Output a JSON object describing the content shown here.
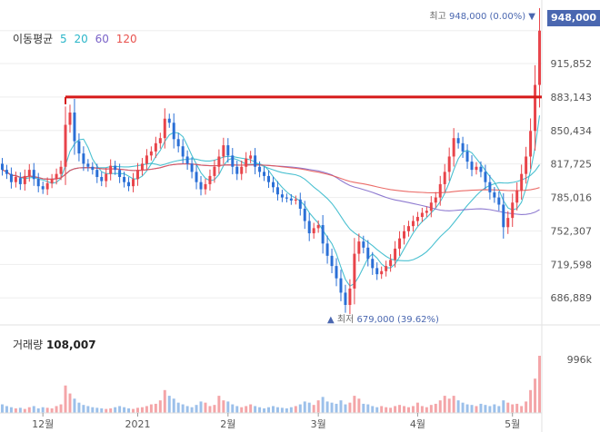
{
  "legend": {
    "title": "이동평균",
    "ma": [
      {
        "label": "5",
        "color": "#2bb6c9"
      },
      {
        "label": "20",
        "color": "#2bb6c9"
      },
      {
        "label": "60",
        "color": "#7a63c8"
      },
      {
        "label": "120",
        "color": "#e8524e"
      }
    ]
  },
  "high": {
    "label": "최고",
    "value": "948,000 (0.00%)",
    "marker": "▼"
  },
  "low": {
    "label": "최저",
    "value": "679,000 (39.62%)",
    "marker": "▲"
  },
  "current_price": "948,000",
  "volume": {
    "label": "거래량",
    "value": "108,007",
    "axis_label": "996k"
  },
  "colors": {
    "up": "#e8444a",
    "down": "#2a6fd6",
    "ma5": "#2bb6c9",
    "ma20": "#2bb6c9",
    "ma60": "#7a63c8",
    "ma120": "#e8524e",
    "resistance": "#d61a1a",
    "vol_up": "#f4a5a8",
    "vol_down": "#9cc0ea"
  },
  "chart_data": {
    "type": "candlestick",
    "y_ticks": [
      "948,000",
      "915,852",
      "883,143",
      "850,434",
      "817,725",
      "785,016",
      "752,307",
      "719,598",
      "686,889"
    ],
    "ylim": [
      672000,
      962000
    ],
    "x_ticks": [
      {
        "label": "12월",
        "index": 9
      },
      {
        "label": "2021",
        "index": 30
      },
      {
        "label": "2월",
        "index": 50
      },
      {
        "label": "3월",
        "index": 70
      },
      {
        "label": "4월",
        "index": 92
      },
      {
        "label": "5월",
        "index": 113
      }
    ],
    "n_candles": 120,
    "resistance_level": 883143,
    "resistance_start_index": 14,
    "close": [
      812000,
      808000,
      800000,
      805000,
      798000,
      806000,
      812000,
      803000,
      796000,
      793000,
      799000,
      803000,
      808000,
      815000,
      856000,
      868000,
      840000,
      828000,
      818000,
      815000,
      812000,
      805000,
      801000,
      808000,
      816000,
      812000,
      805000,
      800000,
      796000,
      803000,
      812000,
      818000,
      826000,
      830000,
      838000,
      843000,
      862000,
      858000,
      842000,
      835000,
      825000,
      818000,
      810000,
      800000,
      793000,
      798000,
      806000,
      815000,
      825000,
      836000,
      826000,
      815000,
      808000,
      815000,
      823000,
      826000,
      815000,
      810000,
      806000,
      800000,
      795000,
      788000,
      785000,
      784000,
      782000,
      783000,
      774000,
      762000,
      750000,
      755000,
      758000,
      740000,
      728000,
      718000,
      706000,
      692000,
      680000,
      696000,
      730000,
      742000,
      736000,
      725000,
      716000,
      710000,
      713000,
      718000,
      724000,
      735000,
      745000,
      752000,
      757000,
      762000,
      766000,
      770000,
      772000,
      780000,
      785000,
      798000,
      810000,
      825000,
      843000,
      838000,
      830000,
      820000,
      812000,
      815000,
      810000,
      800000,
      790000,
      785000,
      778000,
      756000,
      765000,
      780000,
      792000,
      808000,
      825000,
      850000,
      895000,
      948000
    ],
    "open": [
      818000,
      812000,
      808000,
      800000,
      804000,
      798000,
      806000,
      812000,
      803000,
      796000,
      793000,
      799000,
      803000,
      808000,
      815000,
      856000,
      868000,
      840000,
      828000,
      818000,
      815000,
      812000,
      805000,
      801000,
      808000,
      816000,
      812000,
      805000,
      800000,
      796000,
      803000,
      812000,
      818000,
      826000,
      830000,
      838000,
      843000,
      862000,
      858000,
      842000,
      835000,
      825000,
      818000,
      810000,
      800000,
      793000,
      798000,
      806000,
      815000,
      825000,
      836000,
      826000,
      815000,
      808000,
      815000,
      823000,
      826000,
      815000,
      810000,
      806000,
      800000,
      795000,
      788000,
      785000,
      784000,
      782000,
      783000,
      774000,
      762000,
      750000,
      755000,
      758000,
      740000,
      728000,
      718000,
      706000,
      692000,
      680000,
      696000,
      730000,
      742000,
      736000,
      725000,
      716000,
      710000,
      713000,
      718000,
      724000,
      735000,
      745000,
      752000,
      757000,
      762000,
      766000,
      770000,
      772000,
      780000,
      785000,
      798000,
      810000,
      825000,
      843000,
      838000,
      830000,
      820000,
      812000,
      815000,
      810000,
      800000,
      790000,
      785000,
      778000,
      756000,
      765000,
      780000,
      792000,
      808000,
      825000,
      850000,
      895000
    ],
    "volume_rel": [
      0.15,
      0.12,
      0.1,
      0.08,
      0.09,
      0.07,
      0.1,
      0.12,
      0.08,
      0.1,
      0.09,
      0.08,
      0.12,
      0.15,
      0.48,
      0.34,
      0.25,
      0.18,
      0.14,
      0.12,
      0.1,
      0.09,
      0.08,
      0.07,
      0.08,
      0.1,
      0.12,
      0.1,
      0.08,
      0.07,
      0.09,
      0.1,
      0.12,
      0.15,
      0.16,
      0.22,
      0.4,
      0.3,
      0.25,
      0.18,
      0.15,
      0.12,
      0.1,
      0.14,
      0.2,
      0.18,
      0.12,
      0.14,
      0.3,
      0.22,
      0.2,
      0.15,
      0.12,
      0.1,
      0.12,
      0.15,
      0.12,
      0.1,
      0.08,
      0.1,
      0.12,
      0.1,
      0.09,
      0.08,
      0.1,
      0.12,
      0.15,
      0.2,
      0.18,
      0.14,
      0.22,
      0.28,
      0.2,
      0.18,
      0.16,
      0.22,
      0.15,
      0.18,
      0.3,
      0.25,
      0.16,
      0.15,
      0.12,
      0.1,
      0.12,
      0.1,
      0.09,
      0.12,
      0.14,
      0.12,
      0.1,
      0.12,
      0.18,
      0.12,
      0.1,
      0.14,
      0.16,
      0.22,
      0.3,
      0.25,
      0.3,
      0.22,
      0.18,
      0.15,
      0.14,
      0.12,
      0.16,
      0.14,
      0.12,
      0.15,
      0.12,
      0.22,
      0.18,
      0.15,
      0.16,
      0.12,
      0.2,
      0.4,
      0.6,
      1.0
    ]
  }
}
